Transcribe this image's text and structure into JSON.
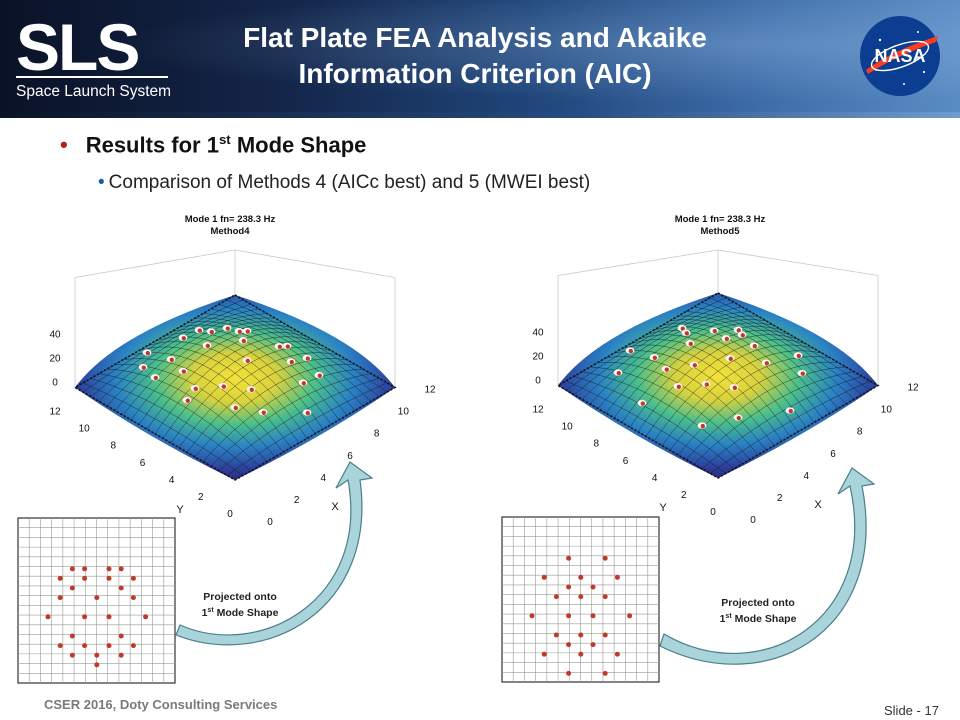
{
  "header": {
    "logo_text": "SLS",
    "logo_subtitle": "Space Launch System",
    "title_line1": "Flat Plate FEA Analysis and Akaike",
    "title_line2": "Information Criterion (AIC)",
    "agency_logo_text": "NASA"
  },
  "content": {
    "bullet1": {
      "prefix": "Results for 1",
      "sup": "st",
      "suffix": " Mode Shape"
    },
    "bullet2": "Comparison of Methods 4 (AICc best) and 5 (MWEI best)"
  },
  "plots": [
    {
      "title_line1": "Mode 1  fn=  238.3 Hz",
      "title_line2": "Method4",
      "z_ticks": [
        "40",
        "20",
        "0"
      ],
      "y_ticks": [
        "12",
        "10",
        "8",
        "6",
        "4",
        "2",
        "0"
      ],
      "x_ticks": [
        "0",
        "2",
        "4",
        "6",
        "8",
        "10",
        "12"
      ],
      "y_label": "Y",
      "x_label": "X",
      "arrow_label_line1": "Projected onto",
      "arrow_label_line2_prefix": "1",
      "arrow_label_line2_sup": "st",
      "arrow_label_line2_suffix": " Mode Shape"
    },
    {
      "title_line1": "Mode 1  fn=  238.3 Hz",
      "title_line2": "Method5",
      "z_ticks": [
        "40",
        "20",
        "0"
      ],
      "y_ticks": [
        "12",
        "10",
        "8",
        "6",
        "4",
        "2",
        "0"
      ],
      "x_ticks": [
        "0",
        "2",
        "4",
        "6",
        "8",
        "10",
        "12"
      ],
      "y_label": "Y",
      "x_label": "X",
      "arrow_label_line1": "Projected onto",
      "arrow_label_line2_prefix": "1",
      "arrow_label_line2_sup": "st",
      "arrow_label_line2_suffix": " Mode Shape"
    }
  ],
  "footer": {
    "left": "CSER 2016, Doty Consulting Services",
    "right": "Slide - 17"
  },
  "colors": {
    "bullet_red": "#b01e1e",
    "bullet_blue": "#1a5fa0",
    "sensor_dot": "#c0392b",
    "arrow_fill": "#a9d4dc"
  }
}
